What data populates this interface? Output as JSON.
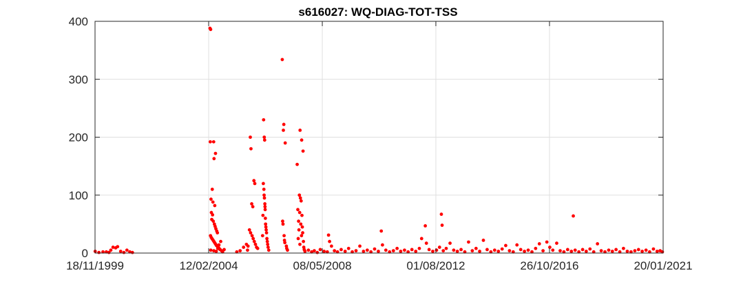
{
  "chart_data": {
    "type": "scatter",
    "title": "s616027: WQ-DIAG-TOT-TSS",
    "xlabel": "",
    "ylabel": "",
    "x_axis_type": "date",
    "xlim": [
      "1999-11-18",
      "2021-01-20"
    ],
    "ylim": [
      0,
      400
    ],
    "x_ticks": [
      "18/11/1999",
      "12/02/2004",
      "08/05/2008",
      "01/08/2012",
      "26/10/2016",
      "20/01/2021"
    ],
    "y_ticks": [
      0,
      100,
      200,
      300,
      400
    ],
    "grid": true,
    "marker_color": "#ff0000",
    "series": [
      {
        "points": [
          [
            "1999-11-20",
            3
          ],
          [
            "2000-01-10",
            1
          ],
          [
            "2000-03-05",
            2
          ],
          [
            "2000-04-20",
            2
          ],
          [
            "2000-05-25",
            1
          ],
          [
            "2000-06-20",
            5
          ],
          [
            "2000-07-20",
            10
          ],
          [
            "2000-08-25",
            9
          ],
          [
            "2000-09-20",
            11
          ],
          [
            "2000-11-01",
            3
          ],
          [
            "2000-12-15",
            1
          ],
          [
            "2001-01-25",
            5
          ],
          [
            "2001-03-05",
            2
          ],
          [
            "2001-04-10",
            1
          ],
          [
            "2004-03-01",
            388
          ],
          [
            "2004-03-10",
            386
          ],
          [
            "2004-03-05",
            192
          ],
          [
            "2004-04-20",
            192
          ],
          [
            "2004-04-25",
            163
          ],
          [
            "2004-05-15",
            172
          ],
          [
            "2004-04-01",
            110
          ],
          [
            "2004-03-15",
            93
          ],
          [
            "2004-04-10",
            88
          ],
          [
            "2004-05-05",
            82
          ],
          [
            "2004-03-20",
            70
          ],
          [
            "2004-04-05",
            66
          ],
          [
            "2004-03-25",
            58
          ],
          [
            "2004-04-15",
            55
          ],
          [
            "2004-04-30",
            50
          ],
          [
            "2004-05-10",
            46
          ],
          [
            "2004-05-20",
            42
          ],
          [
            "2004-06-01",
            38
          ],
          [
            "2004-06-10",
            35
          ],
          [
            "2004-03-08",
            30
          ],
          [
            "2004-03-18",
            27
          ],
          [
            "2004-03-28",
            25
          ],
          [
            "2004-04-08",
            23
          ],
          [
            "2004-04-18",
            21
          ],
          [
            "2004-04-28",
            19
          ],
          [
            "2004-05-08",
            17
          ],
          [
            "2004-05-18",
            15
          ],
          [
            "2004-05-28",
            13
          ],
          [
            "2004-06-08",
            12
          ],
          [
            "2004-06-18",
            10
          ],
          [
            "2004-06-28",
            9
          ],
          [
            "2004-07-08",
            7
          ],
          [
            "2004-07-18",
            6
          ],
          [
            "2004-03-12",
            5
          ],
          [
            "2004-04-22",
            4
          ],
          [
            "2004-05-25",
            3
          ],
          [
            "2004-06-15",
            8
          ],
          [
            "2004-07-01",
            14
          ],
          [
            "2004-07-25",
            20
          ],
          [
            "2004-08-05",
            4
          ],
          [
            "2004-08-20",
            2
          ],
          [
            "2004-09-10",
            6
          ],
          [
            "2005-03-01",
            2
          ],
          [
            "2005-04-15",
            4
          ],
          [
            "2005-06-01",
            10
          ],
          [
            "2005-07-10",
            15
          ],
          [
            "2005-09-01",
            200
          ],
          [
            "2005-09-10",
            180
          ],
          [
            "2005-10-20",
            125
          ],
          [
            "2005-11-01",
            120
          ],
          [
            "2005-09-20",
            85
          ],
          [
            "2005-10-05",
            80
          ],
          [
            "2005-08-20",
            40
          ],
          [
            "2005-09-05",
            35
          ],
          [
            "2005-09-25",
            30
          ],
          [
            "2005-10-10",
            25
          ],
          [
            "2005-10-25",
            20
          ],
          [
            "2005-11-10",
            15
          ],
          [
            "2005-11-25",
            10
          ],
          [
            "2005-12-10",
            8
          ],
          [
            "2005-08-01",
            12
          ],
          [
            "2005-07-25",
            5
          ],
          [
            "2006-03-01",
            230
          ],
          [
            "2006-03-10",
            200
          ],
          [
            "2006-03-15",
            195
          ],
          [
            "2006-02-25",
            120
          ],
          [
            "2006-03-05",
            110
          ],
          [
            "2006-03-08",
            100
          ],
          [
            "2006-03-12",
            95
          ],
          [
            "2006-03-18",
            85
          ],
          [
            "2006-03-20",
            80
          ],
          [
            "2006-03-22",
            75
          ],
          [
            "2006-02-20",
            65
          ],
          [
            "2006-03-25",
            60
          ],
          [
            "2006-03-28",
            50
          ],
          [
            "2006-04-01",
            45
          ],
          [
            "2006-04-05",
            40
          ],
          [
            "2006-04-10",
            35
          ],
          [
            "2006-02-15",
            30
          ],
          [
            "2006-04-15",
            25
          ],
          [
            "2006-04-20",
            20
          ],
          [
            "2006-04-25",
            15
          ],
          [
            "2006-05-01",
            10
          ],
          [
            "2006-05-10",
            5
          ],
          [
            "2006-11-10",
            334
          ],
          [
            "2006-12-01",
            222
          ],
          [
            "2006-11-25",
            212
          ],
          [
            "2006-12-20",
            190
          ],
          [
            "2006-11-15",
            55
          ],
          [
            "2006-11-20",
            50
          ],
          [
            "2006-12-05",
            30
          ],
          [
            "2006-12-10",
            22
          ],
          [
            "2006-12-15",
            18
          ],
          [
            "2007-01-05",
            12
          ],
          [
            "2007-01-10",
            8
          ],
          [
            "2007-01-20",
            5
          ],
          [
            "2007-07-10",
            212
          ],
          [
            "2007-08-01",
            195
          ],
          [
            "2007-08-20",
            176
          ],
          [
            "2007-06-01",
            153
          ],
          [
            "2007-07-01",
            100
          ],
          [
            "2007-07-15",
            95
          ],
          [
            "2007-07-25",
            90
          ],
          [
            "2007-06-10",
            75
          ],
          [
            "2007-07-05",
            70
          ],
          [
            "2007-08-05",
            65
          ],
          [
            "2007-06-20",
            55
          ],
          [
            "2007-07-20",
            50
          ],
          [
            "2007-08-10",
            45
          ],
          [
            "2007-06-25",
            40
          ],
          [
            "2007-08-15",
            35
          ],
          [
            "2007-07-30",
            30
          ],
          [
            "2007-06-15",
            25
          ],
          [
            "2007-08-25",
            20
          ],
          [
            "2007-07-08",
            15
          ],
          [
            "2007-08-30",
            10
          ],
          [
            "2007-09-05",
            6
          ],
          [
            "2007-09-15",
            3
          ],
          [
            "2007-11-01",
            5
          ],
          [
            "2007-12-15",
            2
          ],
          [
            "2008-01-20",
            4
          ],
          [
            "2008-03-01",
            1
          ],
          [
            "2008-04-10",
            6
          ],
          [
            "2008-06-01",
            3
          ],
          [
            "2008-07-15",
            2
          ],
          [
            "2008-08-01",
            31
          ],
          [
            "2008-08-15",
            20
          ],
          [
            "2008-09-10",
            12
          ],
          [
            "2008-10-20",
            4
          ],
          [
            "2008-12-01",
            2
          ],
          [
            "2009-01-20",
            6
          ],
          [
            "2009-03-15",
            3
          ],
          [
            "2009-05-01",
            8
          ],
          [
            "2009-06-20",
            2
          ],
          [
            "2009-08-10",
            4
          ],
          [
            "2009-10-01",
            12
          ],
          [
            "2009-11-20",
            3
          ],
          [
            "2010-01-10",
            5
          ],
          [
            "2010-03-01",
            2
          ],
          [
            "2010-04-20",
            7
          ],
          [
            "2010-06-10",
            3
          ],
          [
            "2010-07-20",
            38
          ],
          [
            "2010-08-05",
            14
          ],
          [
            "2010-09-20",
            5
          ],
          [
            "2010-11-10",
            2
          ],
          [
            "2011-01-01",
            4
          ],
          [
            "2011-02-20",
            8
          ],
          [
            "2011-04-10",
            3
          ],
          [
            "2011-06-01",
            5
          ],
          [
            "2011-07-20",
            2
          ],
          [
            "2011-09-10",
            6
          ],
          [
            "2011-11-01",
            3
          ],
          [
            "2011-12-20",
            8
          ],
          [
            "2012-01-20",
            25
          ],
          [
            "2012-03-10",
            47
          ],
          [
            "2012-03-25",
            17
          ],
          [
            "2012-05-01",
            6
          ],
          [
            "2012-06-20",
            3
          ],
          [
            "2012-08-10",
            5
          ],
          [
            "2012-09-20",
            10
          ],
          [
            "2012-10-15",
            67
          ],
          [
            "2012-10-25",
            48
          ],
          [
            "2012-11-10",
            4
          ],
          [
            "2012-12-20",
            8
          ],
          [
            "2013-02-10",
            17
          ],
          [
            "2013-04-01",
            5
          ],
          [
            "2013-05-20",
            3
          ],
          [
            "2013-07-10",
            6
          ],
          [
            "2013-08-30",
            2
          ],
          [
            "2013-10-20",
            19
          ],
          [
            "2013-12-10",
            4
          ],
          [
            "2014-01-30",
            8
          ],
          [
            "2014-03-20",
            3
          ],
          [
            "2014-05-10",
            22
          ],
          [
            "2014-06-30",
            6
          ],
          [
            "2014-08-20",
            2
          ],
          [
            "2014-10-10",
            5
          ],
          [
            "2014-11-30",
            3
          ],
          [
            "2015-01-20",
            7
          ],
          [
            "2015-03-10",
            13
          ],
          [
            "2015-04-30",
            4
          ],
          [
            "2015-06-20",
            2
          ],
          [
            "2015-08-10",
            14
          ],
          [
            "2015-09-30",
            6
          ],
          [
            "2015-11-20",
            3
          ],
          [
            "2016-01-10",
            5
          ],
          [
            "2016-03-01",
            2
          ],
          [
            "2016-04-20",
            8
          ],
          [
            "2016-06-10",
            16
          ],
          [
            "2016-07-30",
            4
          ],
          [
            "2016-09-20",
            19
          ],
          [
            "2016-10-30",
            10
          ],
          [
            "2016-12-10",
            5
          ],
          [
            "2017-02-01",
            17
          ],
          [
            "2017-03-20",
            4
          ],
          [
            "2017-05-10",
            2
          ],
          [
            "2017-06-30",
            6
          ],
          [
            "2017-08-20",
            3
          ],
          [
            "2017-09-15",
            64
          ],
          [
            "2017-10-10",
            5
          ],
          [
            "2017-11-30",
            2
          ],
          [
            "2018-01-20",
            6
          ],
          [
            "2018-03-10",
            3
          ],
          [
            "2018-04-30",
            7
          ],
          [
            "2018-06-20",
            2
          ],
          [
            "2018-08-10",
            16
          ],
          [
            "2018-09-30",
            4
          ],
          [
            "2018-11-20",
            2
          ],
          [
            "2019-01-10",
            5
          ],
          [
            "2019-03-01",
            3
          ],
          [
            "2019-04-20",
            6
          ],
          [
            "2019-06-10",
            2
          ],
          [
            "2019-07-30",
            8
          ],
          [
            "2019-09-20",
            3
          ],
          [
            "2019-11-10",
            2
          ],
          [
            "2020-01-01",
            4
          ],
          [
            "2020-02-20",
            6
          ],
          [
            "2020-04-10",
            3
          ],
          [
            "2020-06-01",
            5
          ],
          [
            "2020-07-20",
            2
          ],
          [
            "2020-09-10",
            7
          ],
          [
            "2020-10-30",
            3
          ],
          [
            "2020-12-10",
            4
          ],
          [
            "2021-01-10",
            2
          ]
        ]
      }
    ]
  }
}
